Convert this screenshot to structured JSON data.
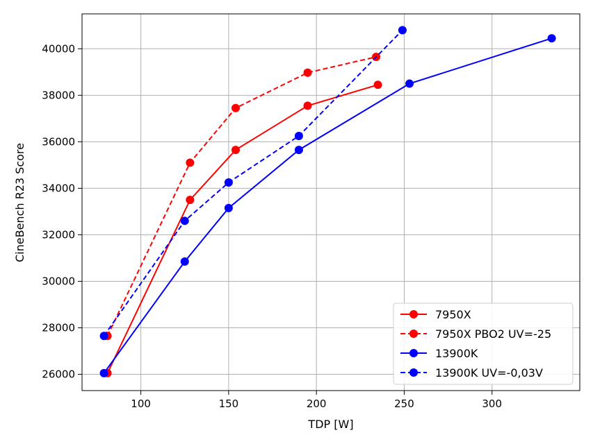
{
  "chart_data": {
    "type": "line",
    "title": "",
    "xlabel": "TDP [W]",
    "ylabel": "CineBench R23 Score",
    "xlim": [
      66.5,
      350
    ],
    "ylim": [
      25300,
      41500
    ],
    "x_ticks": [
      "100",
      "150",
      "200",
      "250",
      "300"
    ],
    "y_ticks": [
      "26000",
      "28000",
      "30000",
      "32000",
      "34000",
      "36000",
      "38000",
      "40000"
    ],
    "grid": true,
    "legend_position": "lower right",
    "series": [
      {
        "name": "7950X",
        "color": "#ff0000",
        "style": "solid",
        "x": [
          81,
          128,
          154,
          195,
          235
        ],
        "y": [
          26050,
          33500,
          35650,
          37550,
          38450
        ]
      },
      {
        "name": "7950X PBO2 UV=-25",
        "color": "#ff0000",
        "style": "dashed",
        "x": [
          81,
          128,
          154,
          195,
          234
        ],
        "y": [
          27650,
          35100,
          37450,
          38970,
          39650
        ]
      },
      {
        "name": "13900K",
        "color": "#0000ff",
        "style": "solid",
        "x": [
          79,
          125,
          150,
          190,
          253,
          334
        ],
        "y": [
          26050,
          30850,
          33150,
          35650,
          38500,
          40450
        ]
      },
      {
        "name": "13900K UV=-0,03V",
        "color": "#0000ff",
        "style": "dashed",
        "x": [
          79,
          125,
          150,
          190,
          249
        ],
        "y": [
          27650,
          32600,
          34250,
          36250,
          40800
        ]
      }
    ]
  }
}
